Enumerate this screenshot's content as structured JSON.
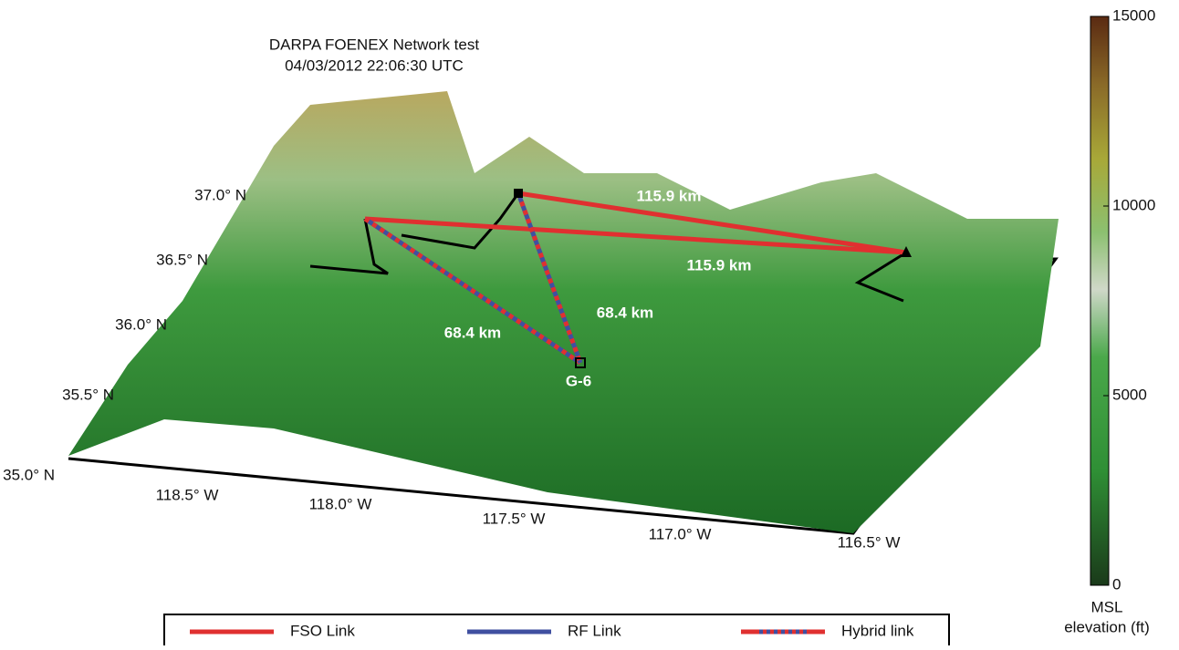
{
  "title": [
    "DARPA FOENEX Network test",
    "04/03/2012 22:06:30 UTC"
  ],
  "latitude_labels": [
    "37.0° N",
    "36.5° N",
    "36.0° N",
    "35.5° N",
    "35.0° N"
  ],
  "longitude_labels": [
    "118.5° W",
    "118.0° W",
    "117.5° W",
    "117.0° W",
    "116.5° W"
  ],
  "links": [
    {
      "type": "FSO Link",
      "label": "115.9 km"
    },
    {
      "type": "FSO Link",
      "label": "115.9 km"
    },
    {
      "type": "Hybrid link",
      "label": "68.4 km"
    },
    {
      "type": "Hybrid link",
      "label": "68.4 km"
    }
  ],
  "node_label": "G-6",
  "legend": [
    "FSO Link",
    "RF Link",
    "Hybrid link"
  ],
  "colorbar": {
    "range": [
      0,
      15000
    ],
    "ticks": [
      0,
      5000,
      10000,
      15000
    ],
    "label": [
      "MSL",
      "elevation (ft)"
    ]
  }
}
